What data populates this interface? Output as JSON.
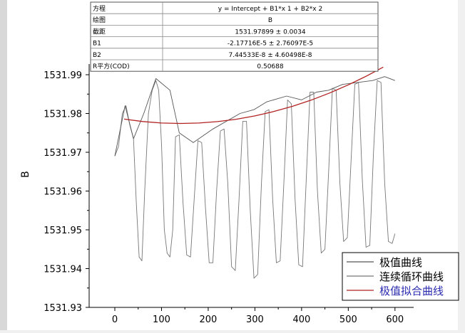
{
  "chart_data": {
    "type": "line",
    "ylabel": "B",
    "xlim": [
      -55,
      640
    ],
    "ylim": [
      1531.93,
      1531.99
    ],
    "x_ticks": [
      0,
      100,
      200,
      300,
      400,
      500,
      600
    ],
    "y_ticks": [
      1531.93,
      1531.94,
      1531.95,
      1531.96,
      1531.97,
      1531.98,
      1531.99
    ],
    "x_tick_labels": [
      "0",
      "100",
      "200",
      "300",
      "400",
      "500",
      "600"
    ],
    "y_tick_labels": [
      "1531.93",
      "1531.94",
      "1531.95",
      "1531.96",
      "1531.97",
      "1531.98",
      "1531.99"
    ],
    "legend_position": "bottom-right",
    "series": [
      {
        "name": "极值曲线",
        "color": "#555555",
        "x": [
          0,
          22,
          40,
          62,
          88,
          118,
          138,
          168,
          210,
          268,
          298,
          325,
          368,
          400,
          432,
          458,
          488,
          520,
          552,
          578,
          600
        ],
        "y": [
          1531.969,
          1531.982,
          1531.9735,
          1531.98,
          1531.989,
          1531.986,
          1531.975,
          1531.9725,
          1531.976,
          1531.98,
          1531.981,
          1531.983,
          1531.9845,
          1531.9835,
          1531.9855,
          1531.986,
          1531.9875,
          1531.988,
          1531.9885,
          1531.9895,
          1531.9885
        ]
      },
      {
        "name": "连续循环曲线",
        "color": "#777777",
        "x": [
          0,
          8,
          16,
          24,
          32,
          40,
          46,
          52,
          58,
          64,
          72,
          80,
          88,
          94,
          100,
          106,
          112,
          118,
          124,
          130,
          138,
          146,
          154,
          162,
          170,
          178,
          186,
          194,
          202,
          210,
          218,
          226,
          234,
          242,
          250,
          258,
          266,
          274,
          282,
          290,
          298,
          306,
          314,
          322,
          330,
          338,
          346,
          354,
          362,
          370,
          378,
          386,
          394,
          402,
          410,
          418,
          426,
          434,
          442,
          450,
          458,
          466,
          474,
          482,
          490,
          498,
          506,
          514,
          522,
          530,
          538,
          546,
          554,
          562,
          570,
          578,
          586,
          594,
          600
        ],
        "y": [
          1531.969,
          1531.9715,
          1531.98,
          1531.982,
          1531.977,
          1531.9735,
          1531.957,
          1531.943,
          1531.942,
          1531.96,
          1531.98,
          1531.986,
          1531.9885,
          1531.986,
          1531.972,
          1531.95,
          1531.944,
          1531.943,
          1531.95,
          1531.974,
          1531.9745,
          1531.957,
          1531.9435,
          1531.943,
          1531.958,
          1531.973,
          1531.9725,
          1531.956,
          1531.9415,
          1531.9415,
          1531.96,
          1531.9755,
          1531.976,
          1531.962,
          1531.9405,
          1531.9395,
          1531.958,
          1531.978,
          1531.978,
          1531.955,
          1531.9375,
          1531.9385,
          1531.962,
          1531.9805,
          1531.981,
          1531.958,
          1531.9415,
          1531.942,
          1531.962,
          1531.9835,
          1531.9825,
          1531.958,
          1531.941,
          1531.9405,
          1531.963,
          1531.9855,
          1531.9855,
          1531.96,
          1531.944,
          1531.945,
          1531.965,
          1531.9865,
          1531.986,
          1531.962,
          1531.947,
          1531.948,
          1531.968,
          1531.9875,
          1531.988,
          1531.963,
          1531.9455,
          1531.946,
          1531.97,
          1531.9885,
          1531.988,
          1531.962,
          1531.947,
          1531.9465,
          1531.949
        ]
      },
      {
        "name": "极值拟合曲线",
        "color": "#b22222",
        "x": [
          20,
          60,
          100,
          140,
          180,
          220,
          260,
          300,
          340,
          380,
          420,
          460,
          500,
          540,
          575
        ],
        "y": [
          1531.97855,
          1531.97793,
          1531.97755,
          1531.97743,
          1531.97754,
          1531.97791,
          1531.97852,
          1531.97938,
          1531.98049,
          1531.98184,
          1531.98344,
          1531.98529,
          1531.98738,
          1531.98971,
          1531.99196
        ]
      }
    ],
    "stats_table": [
      {
        "label": "方程",
        "value": "y = Intercept + B1*x 1 + B2*x 2"
      },
      {
        "label": "绘图",
        "value": "B"
      },
      {
        "label": "截距",
        "value": "1531.97899 ± 0.0034"
      },
      {
        "label": "B1",
        "value": "-2.17716E-5 ± 2.76097E-5"
      },
      {
        "label": "B2",
        "value": "7.44533E-8 ± 4.60498E-8"
      },
      {
        "label": "R平方(COD)",
        "value": "0.50688"
      }
    ]
  }
}
